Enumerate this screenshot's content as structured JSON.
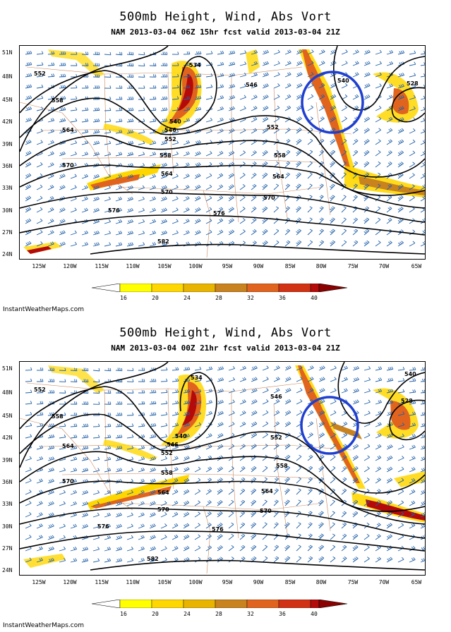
{
  "panels": [
    {
      "title": "500mb Height, Wind, Abs Vort",
      "subtitle": "NAM 2013-03-04 06Z 15hr fcst valid 2013-03-04 21Z",
      "credit": "InstantWeatherMaps.com",
      "contour_labels": [
        "534",
        "540",
        "546",
        "552",
        "558",
        "564",
        "570",
        "576",
        "582",
        "528",
        "540",
        "546",
        "552",
        "558",
        "564",
        "570",
        "576",
        "552",
        "558",
        "564",
        "570"
      ]
    },
    {
      "title": "500mb Height, Wind, Abs Vort",
      "subtitle": "NAM 2013-03-04 00Z 21hr fcst valid 2013-03-04 21Z",
      "credit": "InstantWeatherMaps.com",
      "contour_labels": [
        "534",
        "540",
        "546",
        "552",
        "558",
        "564",
        "570",
        "576",
        "582",
        "528",
        "540",
        "546",
        "552",
        "558",
        "564",
        "570",
        "576",
        "552",
        "558",
        "564",
        "570"
      ]
    }
  ],
  "latitude_labels": [
    "51N",
    "48N",
    "45N",
    "42N",
    "39N",
    "36N",
    "33N",
    "30N",
    "27N",
    "24N"
  ],
  "longitude_labels": [
    "125W",
    "120W",
    "115W",
    "110W",
    "105W",
    "100W",
    "95W",
    "90W",
    "85W",
    "80W",
    "75W",
    "70W",
    "65W"
  ],
  "colorbar": {
    "labels": [
      "16",
      "20",
      "24",
      "28",
      "32",
      "36",
      "40"
    ],
    "colors": [
      "#ffffff",
      "#ffff00",
      "#ffd700",
      "#e8b400",
      "#c8821e",
      "#e0641e",
      "#d23214",
      "#b40a0a",
      "#8b0000"
    ]
  },
  "highlight_circle_color": "#1f3fd0",
  "contour_color": "#000000",
  "wind_barb_color": "#1f5fa8",
  "boundary_color": "#c47a4a"
}
